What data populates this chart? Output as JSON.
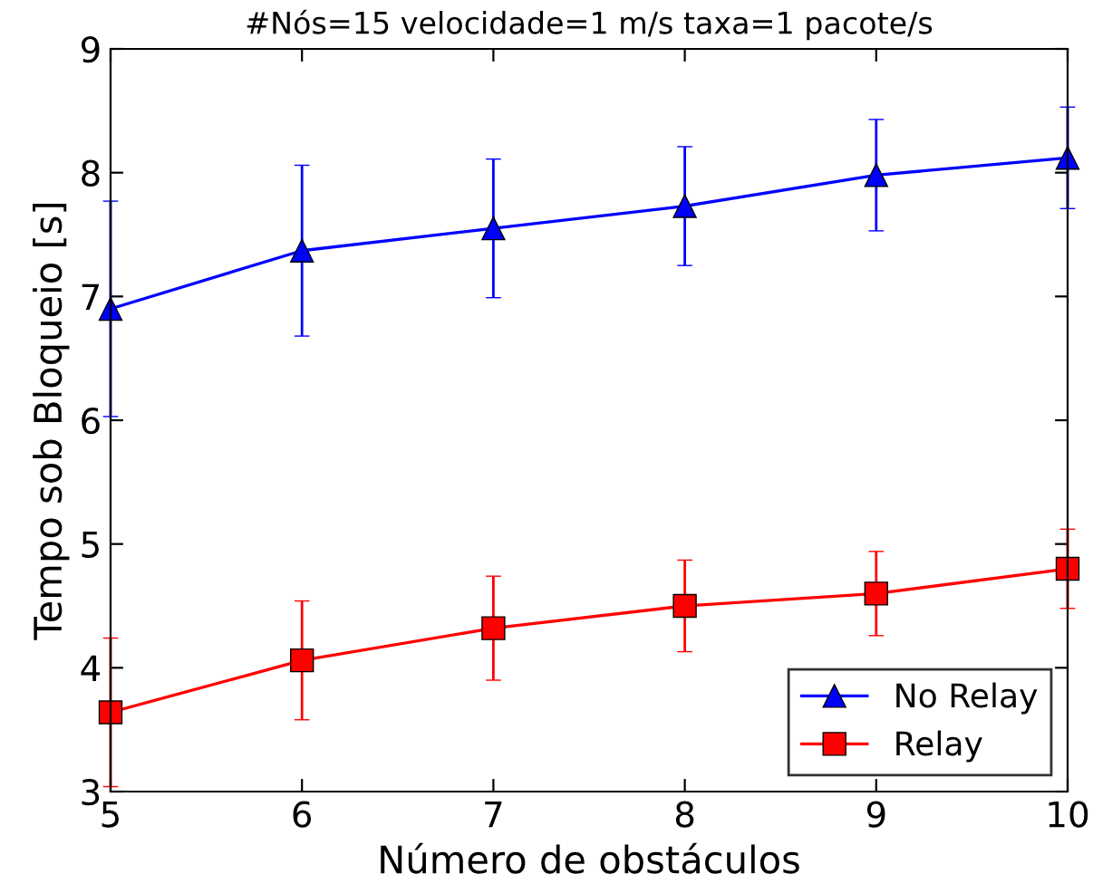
{
  "chart_data": {
    "type": "line",
    "title": "#Nós=15 velocidade=1 m/s taxa=1 pacote/s",
    "xlabel": "Número de obstáculos",
    "ylabel": "Tempo sob Bloqueio [s]",
    "x": [
      5,
      6,
      7,
      8,
      9,
      10
    ],
    "series": [
      {
        "name": "No Relay",
        "color": "#0000ff",
        "marker": "triangle",
        "values": [
          6.9,
          7.37,
          7.55,
          7.73,
          7.98,
          8.12
        ],
        "errors": [
          0.87,
          0.69,
          0.56,
          0.48,
          0.45,
          0.41
        ]
      },
      {
        "name": "Relay",
        "color": "#ff0000",
        "marker": "square",
        "values": [
          3.64,
          4.06,
          4.32,
          4.5,
          4.6,
          4.8
        ],
        "errors": [
          0.6,
          0.48,
          0.42,
          0.37,
          0.34,
          0.32
        ]
      }
    ],
    "xlim": [
      5,
      10
    ],
    "ylim": [
      3,
      9
    ],
    "xticks": [
      5,
      6,
      7,
      8,
      9,
      10
    ],
    "yticks": [
      3,
      4,
      5,
      6,
      7,
      8,
      9
    ],
    "grid": false,
    "legend": "bottom right",
    "line_style": "solid"
  }
}
